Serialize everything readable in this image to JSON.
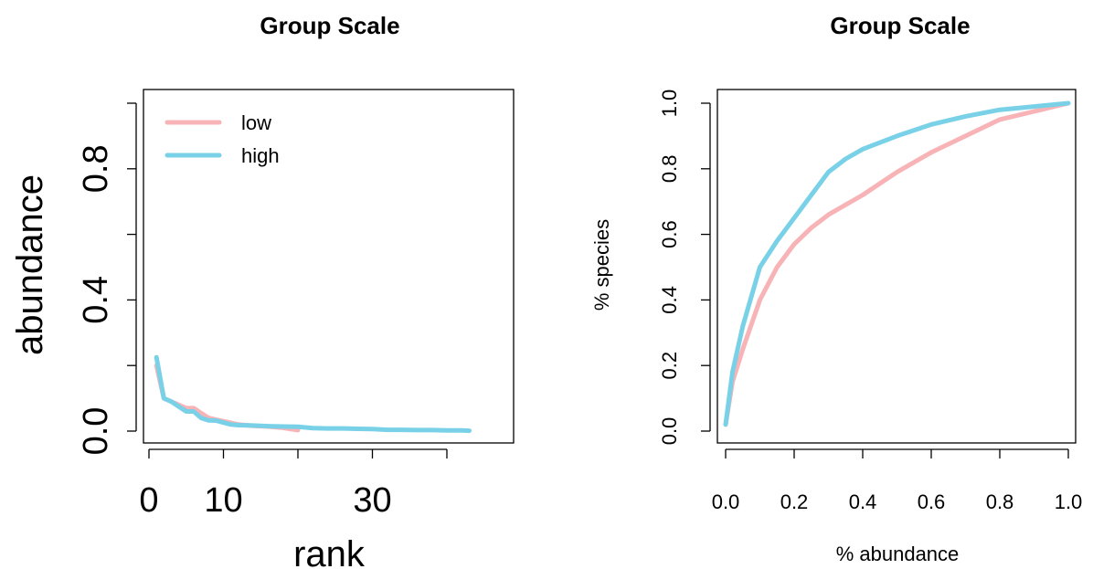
{
  "chart_data": [
    {
      "type": "line",
      "title": "Group Scale",
      "xlabel": "rank",
      "ylabel": "abundance",
      "xlim": [
        -0.5,
        48
      ],
      "ylim": [
        0,
        1
      ],
      "x_ticks": [
        0,
        10,
        30
      ],
      "x_tick_marks": [
        0,
        10,
        20,
        30,
        40
      ],
      "x_tick_labels": [
        "0",
        "10",
        "30"
      ],
      "y_ticks": [
        0.0,
        0.4,
        0.8
      ],
      "y_tick_marks": [
        0.0,
        0.2,
        0.4,
        0.6,
        0.8,
        1.0
      ],
      "y_tick_labels": [
        "0.0",
        "0.4",
        "0.8"
      ],
      "legend": {
        "position": "top-left",
        "entries": [
          "low",
          "high"
        ]
      },
      "series": [
        {
          "name": "low",
          "color": "#F8B3B6",
          "x": [
            1,
            2,
            3,
            4,
            5,
            6,
            7,
            8,
            9,
            10,
            11,
            12,
            13,
            14,
            15,
            16,
            17,
            18,
            19,
            20
          ],
          "y": [
            0.2,
            0.1,
            0.09,
            0.08,
            0.07,
            0.07,
            0.055,
            0.04,
            0.035,
            0.03,
            0.025,
            0.02,
            0.018,
            0.016,
            0.015,
            0.014,
            0.012,
            0.01,
            0.006,
            0.003
          ]
        },
        {
          "name": "high",
          "color": "#79D1E8",
          "x": [
            1,
            2,
            3,
            4,
            5,
            6,
            7,
            8,
            9,
            10,
            11,
            12,
            14,
            16,
            18,
            20,
            22,
            24,
            26,
            28,
            30,
            32,
            34,
            36,
            38,
            40,
            42,
            43
          ],
          "y": [
            0.225,
            0.1,
            0.09,
            0.075,
            0.06,
            0.06,
            0.04,
            0.033,
            0.032,
            0.026,
            0.02,
            0.018,
            0.017,
            0.015,
            0.014,
            0.013,
            0.009,
            0.008,
            0.008,
            0.007,
            0.006,
            0.004,
            0.004,
            0.003,
            0.003,
            0.002,
            0.002,
            0.001
          ]
        }
      ]
    },
    {
      "type": "line",
      "title": "Group Scale",
      "xlabel": "% abundance",
      "ylabel": "% species",
      "xlim": [
        0,
        1
      ],
      "ylim": [
        0,
        1
      ],
      "x_ticks": [
        0.0,
        0.2,
        0.4,
        0.6,
        0.8,
        1.0
      ],
      "x_tick_labels": [
        "0.0",
        "0.2",
        "0.4",
        "0.6",
        "0.8",
        "1.0"
      ],
      "y_ticks": [
        0.0,
        0.2,
        0.4,
        0.6,
        0.8,
        1.0
      ],
      "y_tick_labels": [
        "0.0",
        "0.2",
        "0.4",
        "0.6",
        "0.8",
        "1.0"
      ],
      "series": [
        {
          "name": "low",
          "color": "#F8B3B6",
          "x": [
            0.0,
            0.02,
            0.05,
            0.1,
            0.15,
            0.2,
            0.25,
            0.3,
            0.4,
            0.5,
            0.6,
            0.7,
            0.8,
            0.9,
            1.0
          ],
          "y": [
            0.02,
            0.15,
            0.25,
            0.4,
            0.5,
            0.57,
            0.62,
            0.66,
            0.72,
            0.79,
            0.85,
            0.9,
            0.95,
            0.975,
            1.0
          ]
        },
        {
          "name": "high",
          "color": "#79D1E8",
          "x": [
            0.0,
            0.02,
            0.05,
            0.1,
            0.15,
            0.2,
            0.25,
            0.3,
            0.35,
            0.4,
            0.5,
            0.6,
            0.7,
            0.8,
            0.9,
            1.0
          ],
          "y": [
            0.02,
            0.18,
            0.32,
            0.5,
            0.58,
            0.65,
            0.72,
            0.79,
            0.83,
            0.86,
            0.9,
            0.935,
            0.96,
            0.98,
            0.99,
            1.0
          ]
        }
      ]
    }
  ]
}
